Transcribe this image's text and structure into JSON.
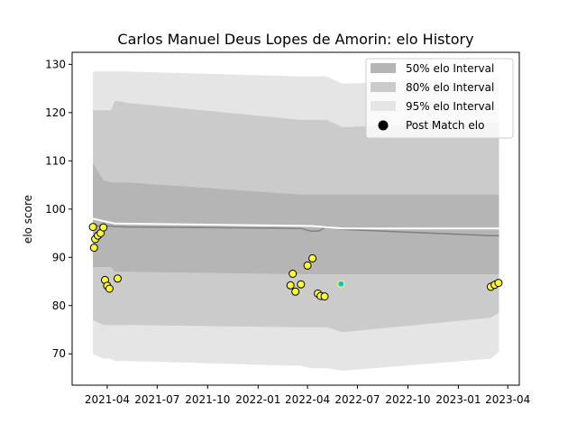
{
  "chart_data": {
    "type": "scatter",
    "title": "Carlos Manuel Deus Lopes de Amorin: elo History",
    "xlabel": "",
    "ylabel": "elo score",
    "xlim": [
      "2021-01-27",
      "2023-04-22"
    ],
    "ylim": [
      63.5,
      132.5
    ],
    "x_ticks": [
      "2021-04",
      "2021-07",
      "2021-10",
      "2022-01",
      "2022-04",
      "2022-07",
      "2022-10",
      "2023-01",
      "2023-04"
    ],
    "y_ticks": [
      70,
      80,
      90,
      100,
      110,
      120,
      130
    ],
    "grid": false,
    "legend": {
      "placement": "top-right",
      "entries": [
        "50% elo Interval",
        "80% elo Interval",
        "95% elo Interval",
        "Post Match elo"
      ]
    },
    "colors": {
      "band95": "#e5e5e5",
      "band80": "#cbcbcb",
      "band50": "#b5b5b5",
      "mean_line": "#808080",
      "baseline_line": "#ffffff",
      "point_fill": "#ffff33",
      "point_edge": "#000000",
      "highlight_fill": "#17becf"
    },
    "bands": {
      "x": [
        "2021-03-06",
        "2021-03-25",
        "2021-04-08",
        "2021-04-15",
        "2021-05-10",
        "2022-03-20",
        "2022-04-08",
        "2022-04-22",
        "2022-05-06",
        "2022-06-04",
        "2023-03-01",
        "2023-03-16"
      ],
      "mean": [
        96.5,
        96.5,
        96.5,
        96.4,
        96.3,
        96.0,
        95.4,
        95.5,
        96.4,
        95.8,
        94.5,
        94.5
      ],
      "p50": {
        "upper": [
          109.5,
          106.0,
          105.5,
          105.5,
          105.5,
          103.0,
          103.0,
          103.0,
          103.0,
          103.0,
          103.0,
          103.0
        ],
        "lower": [
          88.0,
          88.0,
          88.0,
          87.0,
          87.0,
          86.5,
          86.5,
          86.5,
          86.5,
          86.5,
          86.5,
          86.5
        ]
      },
      "p80": {
        "upper": [
          120.5,
          120.5,
          120.5,
          122.5,
          122.0,
          118.5,
          118.5,
          118.5,
          118.5,
          117.0,
          118.0,
          118.0
        ],
        "lower": [
          77.0,
          76.0,
          76.0,
          76.0,
          76.0,
          75.5,
          75.5,
          75.5,
          75.5,
          74.5,
          77.5,
          78.5
        ]
      },
      "p95": {
        "upper": [
          128.5,
          128.5,
          128.5,
          128.5,
          128.5,
          127.5,
          127.5,
          127.5,
          127.5,
          126.0,
          127.0,
          128.0
        ],
        "lower": [
          70.0,
          69.0,
          69.0,
          68.5,
          68.5,
          67.5,
          67.0,
          67.0,
          67.0,
          66.5,
          69.0,
          70.5
        ]
      }
    },
    "baseline": {
      "x": [
        "2021-03-06",
        "2021-04-15",
        "2022-04-08",
        "2022-06-04",
        "2023-03-16"
      ],
      "values": [
        98.0,
        97.0,
        96.5,
        96.0,
        96.0
      ]
    },
    "series": [
      {
        "values": [
          {
            "x": "2021-03-06",
            "y": 96.3
          },
          {
            "x": "2021-03-08",
            "y": 92.0
          },
          {
            "x": "2021-03-10",
            "y": 93.8
          },
          {
            "x": "2021-03-15",
            "y": 94.5
          },
          {
            "x": "2021-03-20",
            "y": 95.0
          },
          {
            "x": "2021-03-25",
            "y": 96.2
          },
          {
            "x": "2021-03-28",
            "y": 85.3
          },
          {
            "x": "2021-04-01",
            "y": 84.1
          },
          {
            "x": "2021-04-05",
            "y": 83.5
          },
          {
            "x": "2021-04-20",
            "y": 85.6
          },
          {
            "x": "2022-03-01",
            "y": 84.2
          },
          {
            "x": "2022-03-05",
            "y": 86.6
          },
          {
            "x": "2022-03-10",
            "y": 82.9
          },
          {
            "x": "2022-03-20",
            "y": 84.4
          },
          {
            "x": "2022-04-01",
            "y": 88.3
          },
          {
            "x": "2022-04-10",
            "y": 89.8
          },
          {
            "x": "2022-04-20",
            "y": 82.5
          },
          {
            "x": "2022-04-25",
            "y": 82.0
          },
          {
            "x": "2022-05-02",
            "y": 81.9
          },
          {
            "x": "2023-03-01",
            "y": 83.9
          },
          {
            "x": "2023-03-08",
            "y": 84.3
          },
          {
            "x": "2023-03-15",
            "y": 84.7
          }
        ]
      },
      {
        "values": [
          {
            "x": "2022-06-01",
            "y": 84.5
          }
        ]
      }
    ]
  }
}
